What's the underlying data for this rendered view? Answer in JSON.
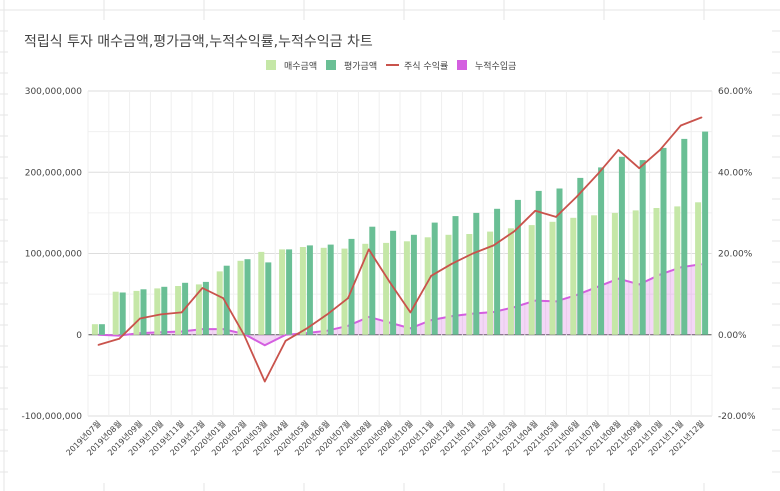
{
  "title": "적립식 투자 매수금액,평가금액,누적수익률,누적수익금 차트",
  "legend": [
    {
      "label": "매수금액",
      "kind": "box",
      "color": "#c5e7a7"
    },
    {
      "label": "평가금액",
      "kind": "box",
      "color": "#6abf95"
    },
    {
      "label": "주식 수익률",
      "kind": "line",
      "color": "#c9534c"
    },
    {
      "label": "누적수입금",
      "kind": "box",
      "color": "#d45fe0"
    }
  ],
  "chart_data": {
    "type": "bar",
    "categories": [
      "2019년07월",
      "2019년08월",
      "2019년09월",
      "2019년10월",
      "2019년11월",
      "2019년12월",
      "2020년01월",
      "2020년02월",
      "2020년03월",
      "2020년04월",
      "2020년05월",
      "2020년06월",
      "2020년07월",
      "2020년08월",
      "2020년09월",
      "2020년10월",
      "2020년11월",
      "2020년12월",
      "2021년01월",
      "2021년02월",
      "2021년03월",
      "2021년04월",
      "2021년05월",
      "2021년06월",
      "2021년07월",
      "2021년08월",
      "2021년09월",
      "2021년10월",
      "2021년11월",
      "2021년12월"
    ],
    "left_ticks": [
      "300,000,000",
      "200,000,000",
      "100,000,000",
      "0",
      "-100,000,000"
    ],
    "right_ticks": [
      "60.00%",
      "40.00%",
      "20.00%",
      "0.00%",
      "-20.00%"
    ],
    "y_left_lim": [
      -100000000,
      300000000
    ],
    "y_right_lim": [
      -0.2,
      0.6
    ],
    "series": [
      {
        "name": "매수금액",
        "type": "bar",
        "color": "#c5e7a7",
        "values": [
          13000000,
          53000000,
          54000000,
          57000000,
          60000000,
          62000000,
          78000000,
          91000000,
          102000000,
          105000000,
          108000000,
          107000000,
          106000000,
          112000000,
          113000000,
          115000000,
          120000000,
          123000000,
          124000000,
          127000000,
          131000000,
          135000000,
          139000000,
          144000000,
          147000000,
          150000000,
          153000000,
          156000000,
          158000000,
          163000000
        ]
      },
      {
        "name": "평가금액",
        "type": "bar",
        "color": "#6abf95",
        "values": [
          13000000,
          52000000,
          56000000,
          59000000,
          64000000,
          65000000,
          85000000,
          93000000,
          89000000,
          105000000,
          110000000,
          111000000,
          118000000,
          133000000,
          128000000,
          123000000,
          138000000,
          146000000,
          150000000,
          155000000,
          166000000,
          177000000,
          180000000,
          193000000,
          206000000,
          219000000,
          215000000,
          230000000,
          241000000,
          250000000
        ]
      },
      {
        "name": "주식 수익률",
        "type": "line",
        "color": "#c9534c",
        "values": [
          -0.025,
          -0.01,
          0.04,
          0.05,
          0.055,
          0.115,
          0.09,
          0.0,
          -0.115,
          -0.015,
          0.015,
          0.05,
          0.09,
          0.21,
          0.13,
          0.055,
          0.145,
          0.175,
          0.2,
          0.22,
          0.255,
          0.305,
          0.29,
          0.34,
          0.395,
          0.455,
          0.41,
          0.455,
          0.515,
          0.535
        ]
      },
      {
        "name": "누적수입금",
        "type": "area",
        "color": "#d45fe0",
        "values": [
          0,
          -1000000,
          2000000,
          3000000,
          4000000,
          7000000,
          7000000,
          1000000,
          -13000000,
          0,
          2000000,
          5000000,
          11000000,
          22000000,
          15000000,
          8000000,
          18000000,
          23000000,
          26000000,
          28000000,
          34000000,
          42000000,
          41000000,
          49000000,
          59000000,
          69000000,
          62000000,
          74000000,
          83000000,
          87000000
        ]
      }
    ],
    "grid": true,
    "legend_position": "top"
  }
}
